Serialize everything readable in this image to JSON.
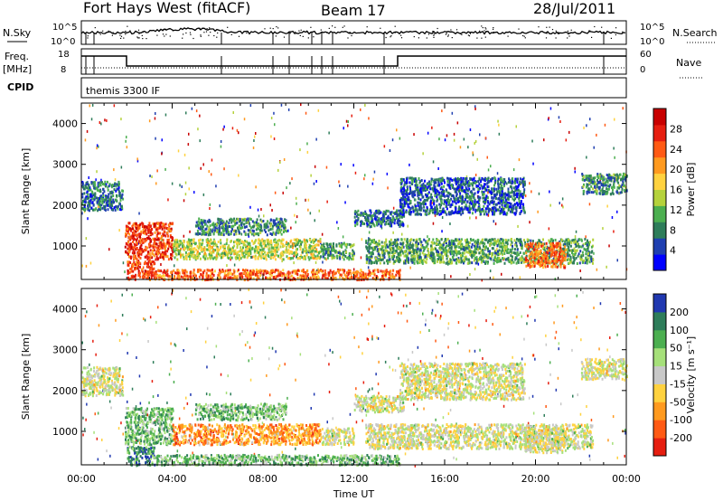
{
  "header": {
    "radar_title": "Fort Hays West (fitACF)",
    "beam": "Beam 17",
    "date": "28/Jul/2011"
  },
  "panels": {
    "nsky_label": "N.Sky",
    "nsearch_label": "N.Search",
    "freq_label_1": "Freq.",
    "freq_label_2": "[MHz]",
    "nave_label": "Nave",
    "cpid_label": "CPID",
    "cpid_value": "themis 3300 IF",
    "nsky_ticks": [
      "10^5",
      "10^0"
    ],
    "nsearch_ticks": [
      "10^5",
      "10^0"
    ],
    "freq_ticks": [
      "18",
      "8"
    ],
    "nave_ticks": [
      "60",
      "0"
    ]
  },
  "chart_data": [
    {
      "type": "heatmap",
      "name": "power",
      "ylabel": "Slant Range [km]",
      "ylim": [
        180,
        4500
      ],
      "xlim_hours": [
        0,
        24
      ],
      "y_ticks": [
        1000,
        2000,
        3000,
        4000
      ],
      "y_tick_labels": [
        "1000",
        "2000",
        "3000",
        "4000"
      ],
      "colorbar": {
        "label": "Power [dB]",
        "range": [
          0,
          32
        ],
        "tick_values": [
          4,
          8,
          12,
          16,
          20,
          24,
          28
        ],
        "tick_labels": [
          "4",
          "8",
          "12",
          "16",
          "20",
          "24",
          "28"
        ],
        "colors": [
          "#0000ff",
          "#1f3fb0",
          "#2e7d5a",
          "#4caf50",
          "#b5d23c",
          "#ffd23f",
          "#ff9a1f",
          "#ff5a14",
          "#e61e10",
          "#c80000"
        ]
      },
      "regions": [
        {
          "t": [
            0.0,
            1.8
          ],
          "r": [
            1900,
            2600
          ],
          "level": 0.2
        },
        {
          "t": [
            1.9,
            4.0
          ],
          "r": [
            700,
            1600
          ],
          "level": 0.85
        },
        {
          "t": [
            2.0,
            3.2
          ],
          "r": [
            200,
            650
          ],
          "level": 0.8
        },
        {
          "t": [
            3.2,
            14.0
          ],
          "r": [
            200,
            450
          ],
          "level": 0.75
        },
        {
          "t": [
            4.0,
            10.5
          ],
          "r": [
            700,
            1200
          ],
          "level": 0.45
        },
        {
          "t": [
            5.0,
            9.0
          ],
          "r": [
            1300,
            1700
          ],
          "level": 0.25
        },
        {
          "t": [
            10.5,
            12.0
          ],
          "r": [
            700,
            1100
          ],
          "level": 0.3
        },
        {
          "t": [
            12.5,
            22.5
          ],
          "r": [
            600,
            1200
          ],
          "level": 0.3
        },
        {
          "t": [
            12.0,
            14.2
          ],
          "r": [
            1500,
            1900
          ],
          "level": 0.2
        },
        {
          "t": [
            14.0,
            19.5
          ],
          "r": [
            1800,
            2700
          ],
          "level": 0.15
        },
        {
          "t": [
            19.5,
            21.3
          ],
          "r": [
            500,
            1100
          ],
          "level": 0.75
        },
        {
          "t": [
            22.0,
            24.0
          ],
          "r": [
            2300,
            2800
          ],
          "level": 0.25
        }
      ]
    },
    {
      "type": "heatmap",
      "name": "velocity",
      "ylabel": "Slant Range [km]",
      "xlabel": "Time UT",
      "ylim": [
        180,
        4500
      ],
      "xlim_hours": [
        0,
        24
      ],
      "x_tick_hours": [
        0,
        4,
        8,
        12,
        16,
        20,
        24
      ],
      "x_tick_labels": [
        "00:00",
        "04:00",
        "08:00",
        "12:00",
        "16:00",
        "20:00",
        "00:00"
      ],
      "y_ticks": [
        1000,
        2000,
        3000,
        4000
      ],
      "y_tick_labels": [
        "1000",
        "2000",
        "3000",
        "4000"
      ],
      "colorbar": {
        "label": "Velocity [m s⁻¹]",
        "tick_labels": [
          "200",
          "100",
          "50",
          "15",
          "-15",
          "-50",
          "-100",
          "-200"
        ],
        "colors": [
          "#2038b0",
          "#2e7d5a",
          "#4caf50",
          "#a6e07a",
          "#c8c8c8",
          "#ffd23f",
          "#ff9a1f",
          "#ff5a14",
          "#e61e10"
        ]
      },
      "regions": [
        {
          "t": [
            0.0,
            1.8
          ],
          "r": [
            1900,
            2600
          ],
          "level": 0.5
        },
        {
          "t": [
            1.9,
            4.0
          ],
          "r": [
            700,
            1600
          ],
          "level": 0.3
        },
        {
          "t": [
            2.0,
            3.2
          ],
          "r": [
            200,
            650
          ],
          "level": 0.15
        },
        {
          "t": [
            3.2,
            14.0
          ],
          "r": [
            200,
            450
          ],
          "level": 0.3
        },
        {
          "t": [
            4.0,
            10.5
          ],
          "r": [
            700,
            1200
          ],
          "level": 0.75
        },
        {
          "t": [
            5.0,
            9.0
          ],
          "r": [
            1300,
            1700
          ],
          "level": 0.3
        },
        {
          "t": [
            10.5,
            12.0
          ],
          "r": [
            700,
            1100
          ],
          "level": 0.5
        },
        {
          "t": [
            12.5,
            22.5
          ],
          "r": [
            600,
            1200
          ],
          "level": 0.5
        },
        {
          "t": [
            12.0,
            14.2
          ],
          "r": [
            1500,
            1900
          ],
          "level": 0.5
        },
        {
          "t": [
            14.0,
            19.5
          ],
          "r": [
            1800,
            2700
          ],
          "level": 0.5
        },
        {
          "t": [
            19.5,
            21.3
          ],
          "r": [
            500,
            1100
          ],
          "level": 0.5
        },
        {
          "t": [
            22.0,
            24.0
          ],
          "r": [
            2300,
            2800
          ],
          "level": 0.5
        }
      ]
    }
  ]
}
